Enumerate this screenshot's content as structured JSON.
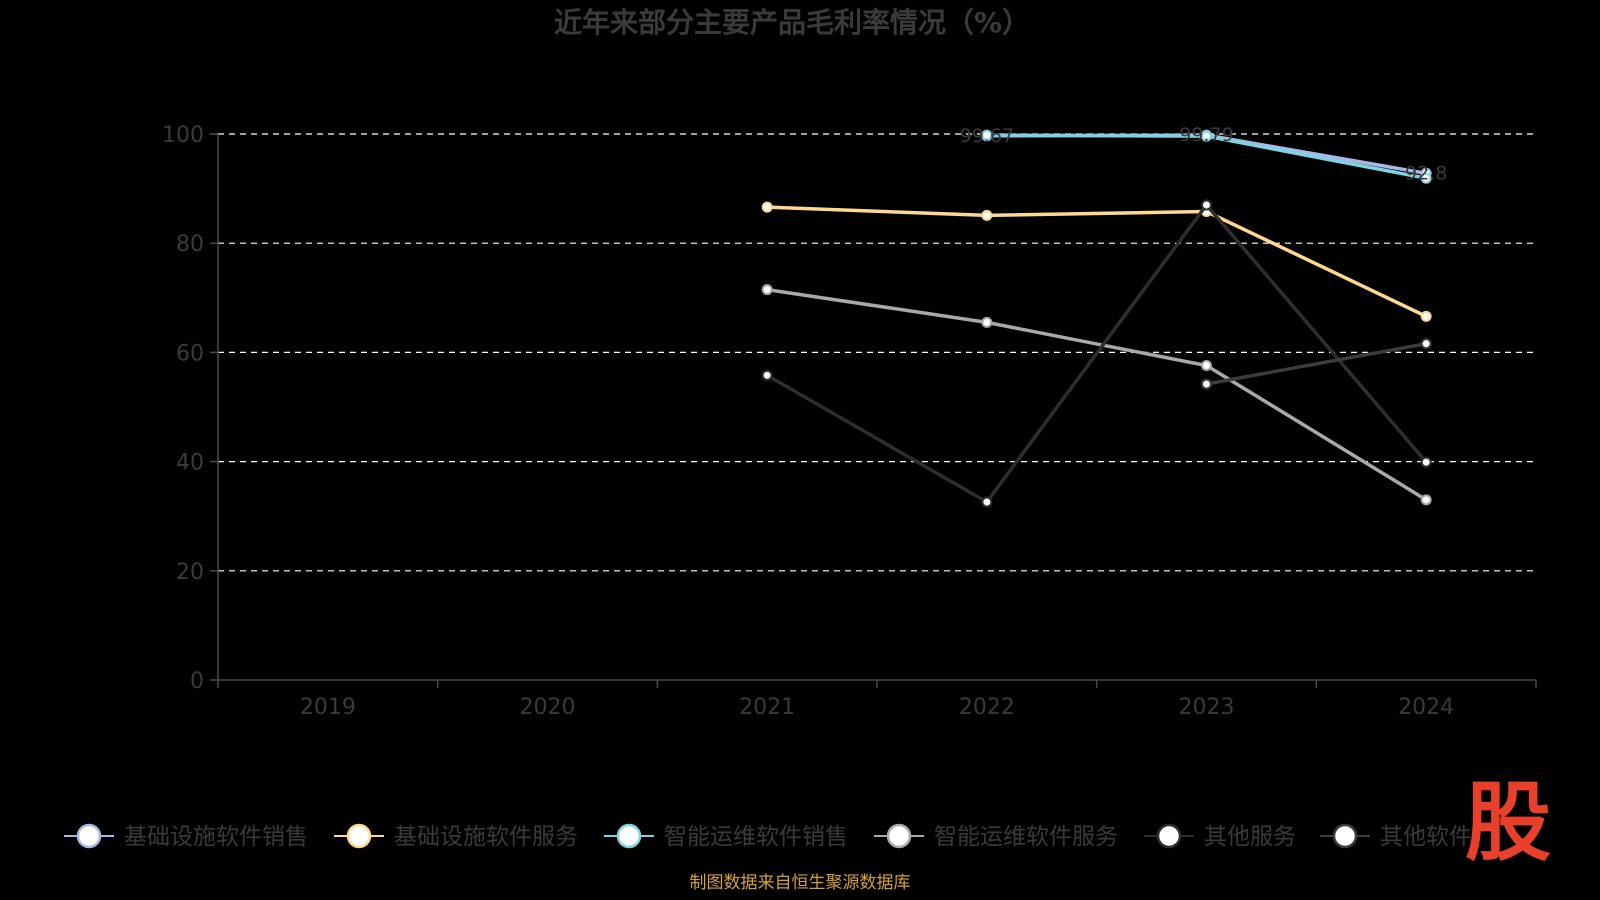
{
  "chart_data": {
    "type": "line",
    "title": "近年来部分主要产品毛利率情况（%）",
    "categories": [
      "2019",
      "2020",
      "2021",
      "2022",
      "2023",
      "2024"
    ],
    "ylim": [
      0,
      100
    ],
    "yticks": [
      0,
      20,
      40,
      60,
      80,
      100
    ],
    "grid": true,
    "legend_position": "bottom",
    "series": [
      {
        "name": "基础设施软件销售",
        "values": [
          null,
          null,
          null,
          99.67,
          99.79,
          92.8
        ],
        "color": "#a8b8e8"
      },
      {
        "name": "基础设施软件服务",
        "values": [
          null,
          null,
          86.6,
          85.1,
          85.8,
          66.6
        ],
        "color": "#ffd990"
      },
      {
        "name": "智能运维软件销售",
        "values": [
          null,
          null,
          null,
          99.8,
          99.6,
          91.9
        ],
        "color": "#7fd3e0"
      },
      {
        "name": "智能运维软件服务",
        "values": [
          null,
          null,
          71.5,
          65.5,
          57.6,
          33.0
        ],
        "color": "#a9a9a9"
      },
      {
        "name": "其他服务",
        "values": [
          null,
          null,
          55.8,
          32.6,
          87.0,
          39.9
        ],
        "color": "#2e2e2e"
      },
      {
        "name": "其他软件",
        "values": [
          null,
          null,
          null,
          null,
          54.2,
          61.6
        ],
        "color": "#3c3c3c"
      }
    ],
    "data_labels": [
      "99.67",
      "99.79",
      "92.8"
    ]
  },
  "source": "制图数据来自恒生聚源数据库",
  "watermark_text": "股"
}
